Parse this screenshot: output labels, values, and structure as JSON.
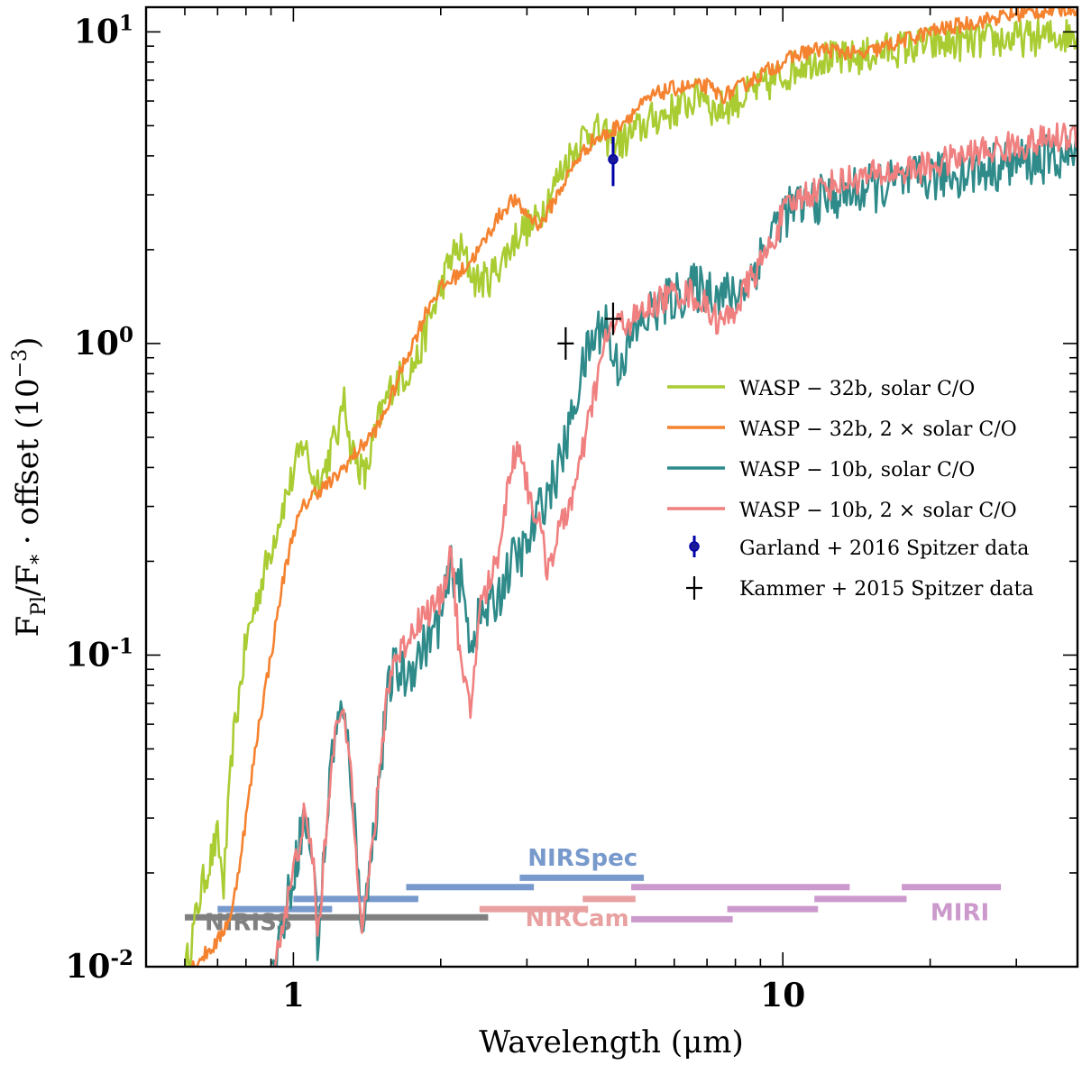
{
  "chart_data": {
    "type": "line",
    "x_scale": "log",
    "y_scale": "log",
    "xlim": [
      0.5,
      40
    ],
    "ylim": [
      0.01,
      12
    ],
    "xlabel": "Wavelength (μm)",
    "ylabel": {
      "main": "F",
      "sub_pl": "Pl",
      "slash": "/F",
      "sub_star": "*",
      "rest": " · offset (10",
      "exp": "−3",
      "close": ")"
    },
    "x_ticks": [
      {
        "value": 1,
        "label": "1"
      },
      {
        "value": 10,
        "label": "10"
      }
    ],
    "y_ticks": [
      {
        "value": 0.01,
        "base": "10",
        "exp": "-2"
      },
      {
        "value": 0.1,
        "base": "10",
        "exp": "-1"
      },
      {
        "value": 1,
        "base": "10",
        "exp": "0"
      },
      {
        "value": 10,
        "base": "10",
        "exp": "1"
      }
    ],
    "series": [
      {
        "name": "WASP−32b, solar C/O",
        "legend": {
          "lead": "WASP − 32b,",
          "trail": "solar C/O"
        },
        "color": "#aacc33",
        "noise": 0.06,
        "points": [
          [
            0.6,
            0.0095
          ],
          [
            0.65,
            0.018
          ],
          [
            0.7,
            0.026
          ],
          [
            0.72,
            0.018
          ],
          [
            0.75,
            0.05
          ],
          [
            0.8,
            0.11
          ],
          [
            0.85,
            0.16
          ],
          [
            0.9,
            0.22
          ],
          [
            0.95,
            0.3
          ],
          [
            1.0,
            0.38
          ],
          [
            1.05,
            0.49
          ],
          [
            1.1,
            0.36
          ],
          [
            1.15,
            0.38
          ],
          [
            1.2,
            0.47
          ],
          [
            1.25,
            0.55
          ],
          [
            1.27,
            0.74
          ],
          [
            1.3,
            0.48
          ],
          [
            1.4,
            0.37
          ],
          [
            1.5,
            0.58
          ],
          [
            1.6,
            0.75
          ],
          [
            1.7,
            0.8
          ],
          [
            1.8,
            0.9
          ],
          [
            1.9,
            1.2
          ],
          [
            2.0,
            1.5
          ],
          [
            2.1,
            1.9
          ],
          [
            2.2,
            2.0
          ],
          [
            2.35,
            1.6
          ],
          [
            2.5,
            1.6
          ],
          [
            2.7,
            1.9
          ],
          [
            2.9,
            2.3
          ],
          [
            3.1,
            2.4
          ],
          [
            3.3,
            2.9
          ],
          [
            3.6,
            3.8
          ],
          [
            3.9,
            4.6
          ],
          [
            4.1,
            4.9
          ],
          [
            4.3,
            4.6
          ],
          [
            4.5,
            4.5
          ],
          [
            4.7,
            4.4
          ],
          [
            5.0,
            4.8
          ],
          [
            5.5,
            5.3
          ],
          [
            6.0,
            5.6
          ],
          [
            6.5,
            6.0
          ],
          [
            6.9,
            6.5
          ],
          [
            7.2,
            5.6
          ],
          [
            7.6,
            5.7
          ],
          [
            8.0,
            6.0
          ],
          [
            9.0,
            6.6
          ],
          [
            10.0,
            7.2
          ],
          [
            11.0,
            8.0
          ],
          [
            12.0,
            8.3
          ],
          [
            13.0,
            8.1
          ],
          [
            14.5,
            8.3
          ],
          [
            16.0,
            8.7
          ],
          [
            20.0,
            9.1
          ],
          [
            25.0,
            9.3
          ],
          [
            30.0,
            9.5
          ],
          [
            40.0,
            9.8
          ]
        ]
      },
      {
        "name": "WASP−32b, 2× solar C/O",
        "legend": {
          "lead": "WASP − 32b, 2 ×",
          "trail": "solar C/O"
        },
        "color": "#f5822f",
        "noise": 0.025,
        "points": [
          [
            0.6,
            0.0095
          ],
          [
            0.7,
            0.012
          ],
          [
            0.75,
            0.015
          ],
          [
            0.8,
            0.03
          ],
          [
            0.85,
            0.06
          ],
          [
            0.9,
            0.1
          ],
          [
            0.95,
            0.17
          ],
          [
            1.0,
            0.25
          ],
          [
            1.05,
            0.3
          ],
          [
            1.1,
            0.33
          ],
          [
            1.2,
            0.36
          ],
          [
            1.3,
            0.42
          ],
          [
            1.4,
            0.48
          ],
          [
            1.5,
            0.55
          ],
          [
            1.6,
            0.7
          ],
          [
            1.7,
            0.9
          ],
          [
            1.8,
            1.1
          ],
          [
            1.9,
            1.35
          ],
          [
            2.0,
            1.5
          ],
          [
            2.2,
            1.7
          ],
          [
            2.4,
            2.0
          ],
          [
            2.6,
            2.5
          ],
          [
            2.8,
            2.9
          ],
          [
            3.0,
            2.6
          ],
          [
            3.2,
            2.4
          ],
          [
            3.5,
            3.1
          ],
          [
            3.8,
            3.9
          ],
          [
            4.1,
            4.5
          ],
          [
            4.4,
            4.7
          ],
          [
            4.6,
            5.0
          ],
          [
            5.0,
            5.6
          ],
          [
            5.5,
            6.3
          ],
          [
            6.0,
            6.6
          ],
          [
            7.0,
            6.7
          ],
          [
            7.5,
            6.2
          ],
          [
            8.0,
            6.5
          ],
          [
            9.0,
            7.3
          ],
          [
            10.0,
            8.0
          ],
          [
            11.0,
            8.6
          ],
          [
            12.0,
            8.8
          ],
          [
            13.5,
            8.6
          ],
          [
            14.5,
            8.4
          ],
          [
            15.0,
            8.6
          ],
          [
            17.0,
            9.2
          ],
          [
            20.0,
            10.0
          ],
          [
            25.0,
            10.8
          ],
          [
            30.0,
            11.4
          ],
          [
            40.0,
            12.0
          ]
        ]
      },
      {
        "name": "WASP−10b, solar C/O",
        "legend": {
          "lead": "WASP − 10b,",
          "trail": "solar C/O"
        },
        "color": "#2f8a8a",
        "noise": 0.08,
        "points": [
          [
            0.9,
            0.009
          ],
          [
            1.0,
            0.02
          ],
          [
            1.05,
            0.03
          ],
          [
            1.1,
            0.022
          ],
          [
            1.12,
            0.012
          ],
          [
            1.15,
            0.02
          ],
          [
            1.2,
            0.05
          ],
          [
            1.25,
            0.065
          ],
          [
            1.3,
            0.05
          ],
          [
            1.35,
            0.022
          ],
          [
            1.38,
            0.014
          ],
          [
            1.42,
            0.018
          ],
          [
            1.5,
            0.04
          ],
          [
            1.55,
            0.07
          ],
          [
            1.6,
            0.09
          ],
          [
            1.7,
            0.085
          ],
          [
            1.8,
            0.1
          ],
          [
            2.0,
            0.13
          ],
          [
            2.1,
            0.19
          ],
          [
            2.2,
            0.17
          ],
          [
            2.3,
            0.11
          ],
          [
            2.4,
            0.13
          ],
          [
            2.6,
            0.15
          ],
          [
            2.8,
            0.2
          ],
          [
            3.0,
            0.22
          ],
          [
            3.2,
            0.3
          ],
          [
            3.4,
            0.36
          ],
          [
            3.6,
            0.47
          ],
          [
            3.8,
            0.7
          ],
          [
            4.0,
            0.95
          ],
          [
            4.2,
            1.1
          ],
          [
            4.35,
            1.2
          ],
          [
            4.45,
            0.95
          ],
          [
            4.6,
            0.85
          ],
          [
            4.8,
            0.95
          ],
          [
            5.0,
            1.1
          ],
          [
            5.5,
            1.3
          ],
          [
            6.0,
            1.4
          ],
          [
            6.5,
            1.5
          ],
          [
            7.0,
            1.5
          ],
          [
            7.5,
            1.45
          ],
          [
            8.0,
            1.4
          ],
          [
            8.5,
            1.6
          ],
          [
            9.0,
            1.9
          ],
          [
            9.5,
            2.3
          ],
          [
            10.0,
            2.6
          ],
          [
            11.0,
            2.8
          ],
          [
            13.0,
            3.0
          ],
          [
            16.0,
            3.2
          ],
          [
            20.0,
            3.4
          ],
          [
            25.0,
            3.6
          ],
          [
            30.0,
            3.8
          ],
          [
            40.0,
            4.0
          ]
        ]
      },
      {
        "name": "WASP−10b, 2× solar C/O",
        "legend": {
          "lead": "WASP − 10b, 2 ×",
          "trail": "solar C/O"
        },
        "color": "#f08080",
        "noise": 0.05,
        "points": [
          [
            0.9,
            0.009
          ],
          [
            1.0,
            0.02
          ],
          [
            1.05,
            0.03
          ],
          [
            1.1,
            0.022
          ],
          [
            1.12,
            0.012
          ],
          [
            1.15,
            0.02
          ],
          [
            1.2,
            0.05
          ],
          [
            1.25,
            0.065
          ],
          [
            1.3,
            0.05
          ],
          [
            1.35,
            0.022
          ],
          [
            1.38,
            0.014
          ],
          [
            1.42,
            0.018
          ],
          [
            1.5,
            0.04
          ],
          [
            1.55,
            0.075
          ],
          [
            1.6,
            0.095
          ],
          [
            1.7,
            0.11
          ],
          [
            1.8,
            0.13
          ],
          [
            2.0,
            0.15
          ],
          [
            2.1,
            0.22
          ],
          [
            2.2,
            0.09
          ],
          [
            2.3,
            0.065
          ],
          [
            2.4,
            0.14
          ],
          [
            2.6,
            0.2
          ],
          [
            2.8,
            0.42
          ],
          [
            2.9,
            0.48
          ],
          [
            3.0,
            0.35
          ],
          [
            3.2,
            0.25
          ],
          [
            3.3,
            0.19
          ],
          [
            3.5,
            0.25
          ],
          [
            3.8,
            0.36
          ],
          [
            4.0,
            0.55
          ],
          [
            4.2,
            0.8
          ],
          [
            4.4,
            1.1
          ],
          [
            4.6,
            1.15
          ],
          [
            5.0,
            1.2
          ],
          [
            5.5,
            1.35
          ],
          [
            6.0,
            1.45
          ],
          [
            6.5,
            1.45
          ],
          [
            7.0,
            1.3
          ],
          [
            7.5,
            1.15
          ],
          [
            8.0,
            1.3
          ],
          [
            8.5,
            1.55
          ],
          [
            9.0,
            1.8
          ],
          [
            9.5,
            2.1
          ],
          [
            10.0,
            2.6
          ],
          [
            11.0,
            3.0
          ],
          [
            13.0,
            3.3
          ],
          [
            16.0,
            3.5
          ],
          [
            20.0,
            3.7
          ],
          [
            25.0,
            4.1
          ],
          [
            30.0,
            4.3
          ],
          [
            40.0,
            4.7
          ]
        ]
      }
    ],
    "observations": [
      {
        "name": "Garland + 2016 Spitzer data",
        "legend": "Garland + 2016 Spitzer data",
        "color": "#0000aa",
        "marker": "circle",
        "points": [
          {
            "x": 4.5,
            "y": 3.9,
            "ylow": 3.2,
            "yhigh": 4.6
          }
        ]
      },
      {
        "name": "Kammer + 2015 Spitzer data",
        "legend": "Kammer + 2015 Spitzer data",
        "color": "#000000",
        "marker": "plus",
        "points": [
          {
            "x": 3.6,
            "y": 1.0
          },
          {
            "x": 4.5,
            "y": 1.2
          }
        ]
      }
    ],
    "instruments": [
      {
        "name": "NIRISS",
        "color": "#808080",
        "label": "NIRISS",
        "label_x": 0.81,
        "label_y": 0.0131,
        "bars": [
          {
            "x0": 0.6,
            "x1": 2.5,
            "y": 0.0144
          }
        ]
      },
      {
        "name": "NIRSpec",
        "color": "#7799cc",
        "label": "NIRSpec",
        "label_x": 3.9,
        "label_y": 0.0211,
        "bars": [
          {
            "x0": 0.7,
            "x1": 1.2,
            "y": 0.0153
          },
          {
            "x0": 1.0,
            "x1": 1.8,
            "y": 0.0165
          },
          {
            "x0": 1.7,
            "x1": 3.1,
            "y": 0.018
          },
          {
            "x0": 2.9,
            "x1": 5.2,
            "y": 0.0193
          }
        ]
      },
      {
        "name": "NIRCam",
        "color": "#e8a0a0",
        "label": "NIRCam",
        "label_x": 3.8,
        "label_y": 0.0135,
        "bars": [
          {
            "x0": 2.4,
            "x1": 4.0,
            "y": 0.0153
          },
          {
            "x0": 3.9,
            "x1": 5.0,
            "y": 0.0165
          }
        ]
      },
      {
        "name": "MIRI",
        "color": "#cc99cc",
        "label": "MIRI",
        "label_x": 23.0,
        "label_y": 0.0141,
        "bars": [
          {
            "x0": 4.9,
            "x1": 7.9,
            "y": 0.0142
          },
          {
            "x0": 7.7,
            "x1": 11.8,
            "y": 0.0153
          },
          {
            "x0": 11.6,
            "x1": 17.9,
            "y": 0.0165
          },
          {
            "x0": 17.5,
            "x1": 27.9,
            "y": 0.018
          },
          {
            "x0": 4.9,
            "x1": 13.7,
            "y": 0.018
          }
        ]
      }
    ],
    "legend_position": "center-right"
  }
}
